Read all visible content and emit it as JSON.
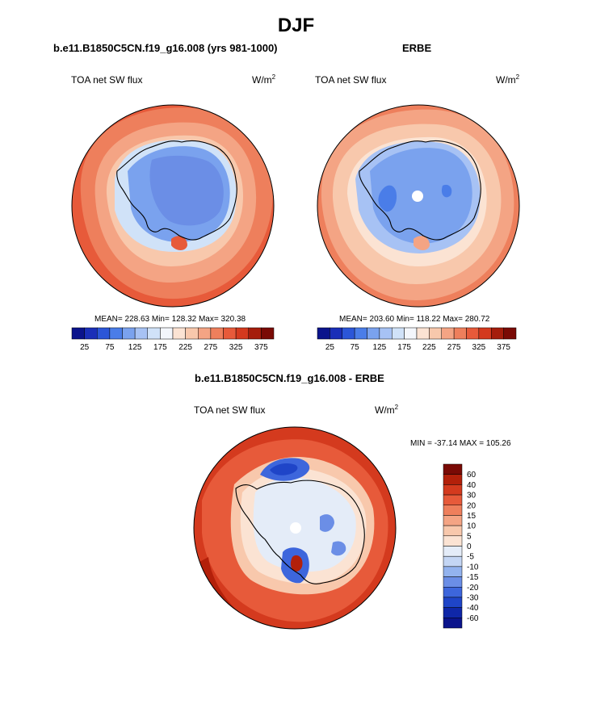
{
  "page": {
    "title": "DJF"
  },
  "panels": {
    "model": {
      "title": "b.e11.B1850C5CN.f19_g16.008 (yrs 981-1000)",
      "variable": "TOA net SW flux",
      "units_base": "W/m",
      "units_exp": "2",
      "stats": "MEAN= 228.63  Min= 128.32  Max= 320.38"
    },
    "obs": {
      "title": "ERBE",
      "variable": "TOA net SW flux",
      "units_base": "W/m",
      "units_exp": "2",
      "stats": "MEAN= 203.60  Min= 118.22  Max= 280.72"
    },
    "diff": {
      "title": "b.e11.B1850C5CN.f19_g16.008 - ERBE",
      "variable": "TOA net SW flux",
      "units_base": "W/m",
      "units_exp": "2",
      "stats": "MIN = -37.14 MAX = 105.26"
    }
  },
  "chart_data": [
    {
      "type": "heatmap",
      "projection": "south-polar stereographic",
      "title": "b.e11.B1850C5CN.f19_g16.008 (yrs 981-1000)",
      "variable": "TOA net SW flux",
      "units": "W/m2",
      "mean": 228.63,
      "min": 128.32,
      "max": 320.38,
      "colorbar": {
        "orientation": "horizontal",
        "levels": [
          25,
          50,
          75,
          100,
          125,
          150,
          175,
          200,
          225,
          250,
          275,
          300,
          325,
          350,
          375
        ],
        "tick_labels": [
          "25",
          "75",
          "125",
          "175",
          "225",
          "275",
          "325",
          "375"
        ],
        "colors": [
          "#0b148c",
          "#1a2fb8",
          "#2b56d8",
          "#4a7de8",
          "#7aa2ee",
          "#a7c2f4",
          "#d0e2f8",
          "#f3f6fb",
          "#fbe3d3",
          "#f8c8ac",
          "#f4a484",
          "#ee7f5c",
          "#e75a3a",
          "#d43a1e",
          "#a51d0c",
          "#7a0a05"
        ]
      }
    },
    {
      "type": "heatmap",
      "projection": "south-polar stereographic",
      "title": "ERBE",
      "variable": "TOA net SW flux",
      "units": "W/m2",
      "mean": 203.6,
      "min": 118.22,
      "max": 280.72,
      "colorbar": {
        "orientation": "horizontal",
        "levels": [
          25,
          50,
          75,
          100,
          125,
          150,
          175,
          200,
          225,
          250,
          275,
          300,
          325,
          350,
          375
        ],
        "tick_labels": [
          "25",
          "75",
          "125",
          "175",
          "225",
          "275",
          "325",
          "375"
        ],
        "colors": [
          "#0b148c",
          "#1a2fb8",
          "#2b56d8",
          "#4a7de8",
          "#7aa2ee",
          "#a7c2f4",
          "#d0e2f8",
          "#f3f6fb",
          "#fbe3d3",
          "#f8c8ac",
          "#f4a484",
          "#ee7f5c",
          "#e75a3a",
          "#d43a1e",
          "#a51d0c",
          "#7a0a05"
        ]
      }
    },
    {
      "type": "heatmap",
      "projection": "south-polar stereographic",
      "title": "b.e11.B1850C5CN.f19_g16.008 - ERBE",
      "variable": "TOA net SW flux",
      "units": "W/m2",
      "min": -37.14,
      "max": 105.26,
      "colorbar": {
        "orientation": "vertical",
        "levels": [
          60,
          40,
          30,
          20,
          15,
          10,
          5,
          0,
          -5,
          -10,
          -15,
          -20,
          -30,
          -40,
          -60
        ],
        "tick_labels": [
          "60",
          "40",
          "30",
          "20",
          "15",
          "10",
          "5",
          "0",
          "-5",
          "-10",
          "-15",
          "-20",
          "-30",
          "-40",
          "-60"
        ],
        "colors": [
          "#7a0a05",
          "#b3200a",
          "#d43a1e",
          "#e75a3a",
          "#ee7f5c",
          "#f4a484",
          "#f8c8ac",
          "#fbe3d3",
          "#e4ecf8",
          "#c4d6f4",
          "#93b3ee",
          "#6b8ee6",
          "#3d66dc",
          "#1f45c8",
          "#0f27a8",
          "#0b148c"
        ]
      }
    }
  ]
}
